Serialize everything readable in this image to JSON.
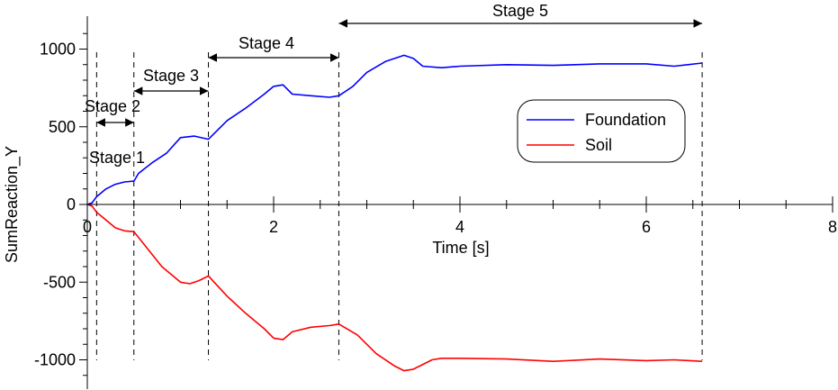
{
  "chart_data": {
    "type": "line",
    "xlabel": "Time [s]",
    "ylabel": "SumReaction_Y",
    "xlim": [
      0,
      8
    ],
    "ylim": [
      -1200,
      1200
    ],
    "x_ticks": [
      0,
      2,
      4,
      6,
      8
    ],
    "y_ticks": [
      1000,
      500,
      0,
      -500,
      -1000
    ],
    "x_tick_labels": [
      "0",
      "2",
      "4",
      "6",
      "8"
    ],
    "y_tick_labels": [
      "1000",
      "500",
      "0",
      "-500",
      "-1000"
    ],
    "grid": false,
    "legend_position": "right",
    "stage_lines_x": [
      0.1,
      0.5,
      1.3,
      2.7,
      6.6
    ],
    "stages": [
      {
        "label": "Stage 1",
        "start": 0.0,
        "end": 0.1
      },
      {
        "label": "Stage 2",
        "start": 0.1,
        "end": 0.5
      },
      {
        "label": "Stage 3",
        "start": 0.5,
        "end": 1.3
      },
      {
        "label": "Stage 4",
        "start": 1.3,
        "end": 2.7
      },
      {
        "label": "Stage 5",
        "start": 2.7,
        "end": 6.6
      }
    ],
    "series": [
      {
        "name": "Foundation",
        "color": "#0000ff",
        "x": [
          0,
          0.05,
          0.1,
          0.2,
          0.3,
          0.4,
          0.5,
          0.55,
          0.7,
          0.85,
          1.0,
          1.15,
          1.3,
          1.5,
          1.7,
          1.9,
          2.0,
          2.1,
          2.2,
          2.4,
          2.6,
          2.7,
          2.85,
          3.0,
          3.2,
          3.4,
          3.5,
          3.6,
          3.8,
          4.0,
          4.5,
          5.0,
          5.5,
          6.0,
          6.3,
          6.6
        ],
        "y": [
          0,
          10,
          50,
          100,
          130,
          145,
          150,
          200,
          270,
          330,
          430,
          440,
          420,
          540,
          620,
          710,
          760,
          770,
          710,
          700,
          690,
          700,
          760,
          850,
          920,
          960,
          940,
          890,
          880,
          890,
          900,
          895,
          905,
          905,
          890,
          910
        ]
      },
      {
        "name": "Soil",
        "color": "#ff0000",
        "x": [
          0,
          0.05,
          0.1,
          0.2,
          0.3,
          0.4,
          0.5,
          0.6,
          0.8,
          1.0,
          1.1,
          1.2,
          1.3,
          1.5,
          1.7,
          1.9,
          2.0,
          2.1,
          2.2,
          2.4,
          2.6,
          2.7,
          2.9,
          3.1,
          3.3,
          3.4,
          3.5,
          3.7,
          3.8,
          4.0,
          4.5,
          5.0,
          5.5,
          6.0,
          6.3,
          6.6
        ],
        "y": [
          0,
          -10,
          -50,
          -100,
          -150,
          -170,
          -175,
          -250,
          -400,
          -500,
          -510,
          -490,
          -460,
          -590,
          -700,
          -800,
          -860,
          -870,
          -820,
          -790,
          -780,
          -770,
          -840,
          -960,
          -1040,
          -1070,
          -1060,
          -1000,
          -990,
          -990,
          -995,
          -1010,
          -995,
          -1005,
          -1000,
          -1010
        ]
      }
    ]
  }
}
